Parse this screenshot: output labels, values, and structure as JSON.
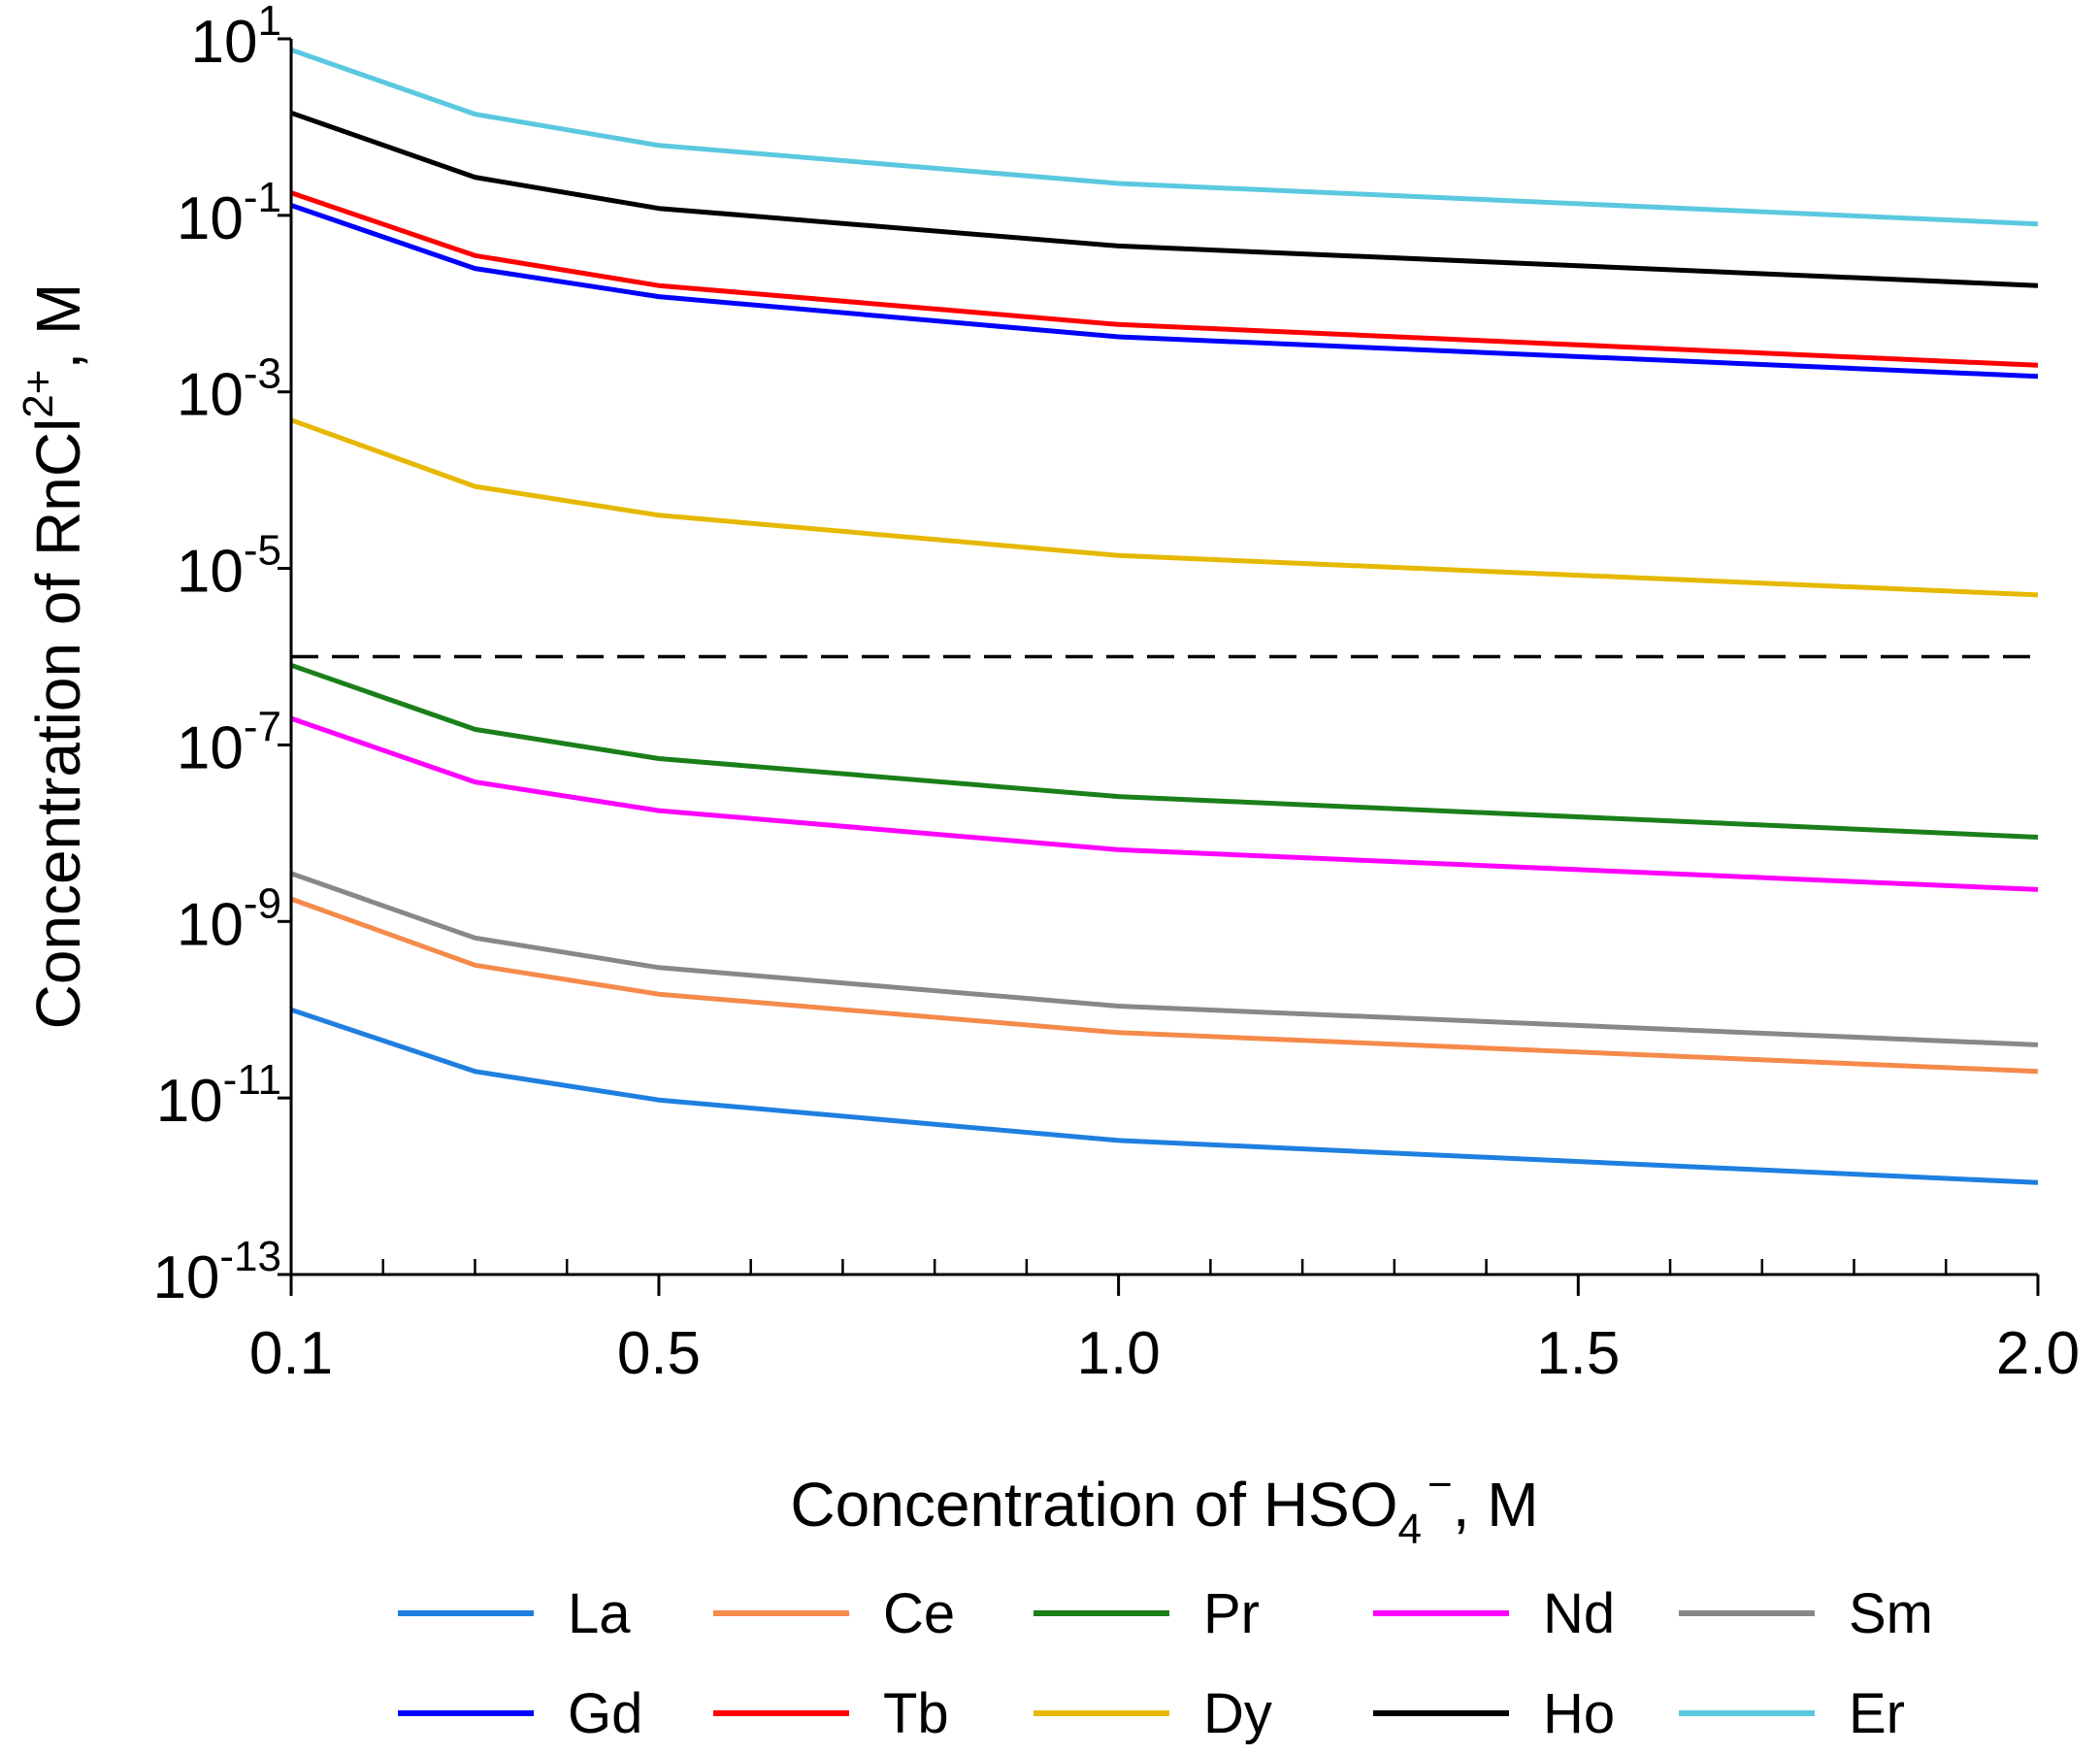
{
  "chart_data": {
    "type": "line",
    "title": "",
    "xlabel": {
      "main": "Concentration of HSO",
      "sub": "4",
      "sup": "−",
      "tail": ", M"
    },
    "ylabel": {
      "main": "Concentration of RnCl",
      "sup": "2+",
      "tail": ", M"
    },
    "x": [
      0.1,
      0.3,
      0.5,
      1.0,
      2.0
    ],
    "xlim": [
      0.1,
      2.0
    ],
    "ylim_log10": [
      -13,
      1
    ],
    "yscale": "log",
    "x_ticks": [
      {
        "value": 0.1,
        "label": "0.1"
      },
      {
        "value": 0.5,
        "label": "0.5"
      },
      {
        "value": 1.0,
        "label": "1.0"
      },
      {
        "value": 1.5,
        "label": "1.5"
      },
      {
        "value": 2.0,
        "label": "2.0"
      }
    ],
    "y_ticks": [
      {
        "exp": 1,
        "base": "10",
        "sup": "1"
      },
      {
        "exp": -1,
        "base": "10",
        "sup": "-1"
      },
      {
        "exp": -3,
        "base": "10",
        "sup": "-3"
      },
      {
        "exp": -5,
        "base": "10",
        "sup": "-5"
      },
      {
        "exp": -7,
        "base": "10",
        "sup": "-7"
      },
      {
        "exp": -9,
        "base": "10",
        "sup": "-9"
      },
      {
        "exp": -11,
        "base": "10",
        "sup": "-11"
      },
      {
        "exp": -13,
        "base": "10",
        "sup": "-13"
      }
    ],
    "reference_line": {
      "value": 1e-06,
      "style": "dashed",
      "color": "#000000"
    },
    "series": [
      {
        "name": "La",
        "color": "#1f7fe0",
        "values": [
          1e-10,
          2e-11,
          9.5e-12,
          3.3e-12,
          1.1e-12
        ]
      },
      {
        "name": "Ce",
        "color": "#f58a4a",
        "values": [
          1.8e-09,
          3.2e-10,
          1.5e-10,
          5.5e-11,
          2e-11
        ]
      },
      {
        "name": "Pr",
        "color": "#1a7f1a",
        "values": [
          8e-07,
          1.5e-07,
          7e-08,
          2.6e-08,
          9e-09
        ]
      },
      {
        "name": "Nd",
        "color": "#ff00ff",
        "values": [
          2e-07,
          3.8e-08,
          1.8e-08,
          6.5e-09,
          2.3e-09
        ]
      },
      {
        "name": "Sm",
        "color": "#888888",
        "values": [
          3.5e-09,
          6.5e-10,
          3e-10,
          1.1e-10,
          4e-11
        ]
      },
      {
        "name": "Gd",
        "color": "#0000ff",
        "values": [
          0.13,
          0.025,
          0.012,
          0.0042,
          0.0015
        ]
      },
      {
        "name": "Tb",
        "color": "#ff0000",
        "values": [
          0.18,
          0.035,
          0.016,
          0.0058,
          0.002
        ]
      },
      {
        "name": "Dy",
        "color": "#e6b800",
        "values": [
          0.00048,
          8.5e-05,
          4e-05,
          1.4e-05,
          5e-06
        ]
      },
      {
        "name": "Ho",
        "color": "#000000",
        "values": [
          1.45,
          0.27,
          0.12,
          0.045,
          0.016
        ]
      },
      {
        "name": "Er",
        "color": "#5bc8e0",
        "values": [
          7.5,
          1.4,
          0.62,
          0.23,
          0.08
        ]
      }
    ],
    "legend": {
      "placement": "bottom",
      "columns": 5,
      "order": [
        "La",
        "Ce",
        "Pr",
        "Nd",
        "Sm",
        "Gd",
        "Tb",
        "Dy",
        "Ho",
        "Er"
      ]
    }
  }
}
